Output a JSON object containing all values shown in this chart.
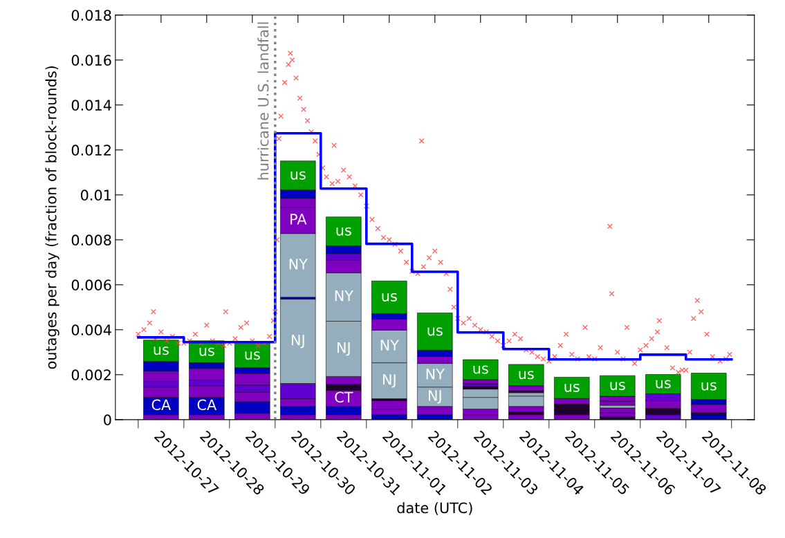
{
  "chart_data": {
    "type": "bar",
    "stacked": true,
    "xlabel": "date (UTC)",
    "ylabel": "outages per day (fraction of block-rounds)",
    "x": [
      "2012-10-27T12:00",
      "2012-10-28T12:00",
      "2012-10-29T12:00",
      "2012-10-30T12:00",
      "2012-10-31T12:00",
      "2012-11-01T12:00",
      "2012-11-02T12:00",
      "2012-11-03T12:00",
      "2012-11-04T12:00",
      "2012-11-05T12:00",
      "2012-11-06T12:00",
      "2012-11-07T12:00",
      "2012-11-08T12:00"
    ],
    "xlim": [
      "2012-10-26T12:00",
      "2012-11-09T12:00"
    ],
    "xticks": [
      {
        "value": "2012-10-27T12:00",
        "label": "2012-10-27"
      },
      {
        "value": "2012-10-28T12:00",
        "label": "2012-10-28"
      },
      {
        "value": "2012-10-29T12:00",
        "label": "2012-10-29"
      },
      {
        "value": "2012-10-30T12:00",
        "label": "2012-10-30"
      },
      {
        "value": "2012-10-31T12:00",
        "label": "2012-10-31"
      },
      {
        "value": "2012-11-01T12:00",
        "label": "2012-11-01"
      },
      {
        "value": "2012-11-02T12:00",
        "label": "2012-11-02"
      },
      {
        "value": "2012-11-03T12:00",
        "label": "2012-11-03"
      },
      {
        "value": "2012-11-04T12:00",
        "label": "2012-11-04"
      },
      {
        "value": "2012-11-05T12:00",
        "label": "2012-11-05"
      },
      {
        "value": "2012-11-06T12:00",
        "label": "2012-11-06"
      },
      {
        "value": "2012-11-07T12:00",
        "label": "2012-11-07"
      },
      {
        "value": "2012-11-08T12:00",
        "label": "2012-11-08"
      },
      {
        "value": "2012-10-27",
        "label": null
      },
      {
        "value": "2012-10-28",
        "label": null
      },
      {
        "value": "2012-10-29",
        "label": null
      },
      {
        "value": "2012-10-30",
        "label": null
      },
      {
        "value": "2012-10-31",
        "label": null
      },
      {
        "value": "2012-11-01",
        "label": null
      },
      {
        "value": "2012-11-02",
        "label": null
      },
      {
        "value": "2012-11-03",
        "label": null
      },
      {
        "value": "2012-11-04",
        "label": null
      },
      {
        "value": "2012-11-05",
        "label": null
      },
      {
        "value": "2012-11-06",
        "label": null
      },
      {
        "value": "2012-11-07",
        "label": null
      },
      {
        "value": "2012-11-08",
        "label": null
      },
      {
        "value": "2012-11-09",
        "label": null
      }
    ],
    "ylim": [
      0,
      0.018
    ],
    "yticks": [
      0,
      0.002,
      0.004,
      0.006,
      0.008,
      0.01,
      0.012,
      0.014,
      0.016,
      0.018
    ],
    "ref_lines": [
      {
        "axis": "x",
        "value": "2012-10-30T00:00",
        "label": "hurricane U.S. landfall",
        "color": "#808080",
        "line_style": "dotted"
      }
    ],
    "series": [
      {
        "values": [
          0.00022,
          0.00022,
          0.00028,
          0.00022,
          0.00022,
          0.00022,
          0.00022,
          0.00022,
          0.00022,
          0.00022,
          0.00012,
          0.00022,
          0.00022
        ],
        "colors": [
          "#8000c0",
          "#8000c0",
          "#8000c0",
          "#8000c0",
          "#8000c0",
          "#0000c0",
          "#0000c0",
          "#8000c0",
          "#8000c0",
          "#8000c0",
          "#200030",
          "#6000d0",
          "#0000c0"
        ]
      },
      {
        "values": [
          0.00077,
          0.00077,
          0.00052,
          0.00037,
          0.00037,
          0.00025,
          0.00037,
          0.00025,
          0.00012,
          0.00022,
          0.00018,
          0.00028,
          9e-05
        ],
        "colors": [
          "#0000c0",
          "#0000c0",
          "#0000c0",
          "#0000c0",
          "#0000c0",
          "#8000c0",
          "#8000c0",
          "#8000c0",
          "#200030",
          "#200030",
          "#8000c0",
          "#200030",
          "#200030"
        ],
        "value_labels": [
          "CA",
          "CA",
          null,
          null,
          null,
          null,
          null,
          null,
          null,
          null,
          null,
          null,
          null
        ]
      },
      {
        "values": [
          0.00046,
          0.00052,
          0.00043,
          0.00034,
          0.00071,
          0.00037,
          0.00086,
          0.00052,
          0.00025,
          0.00025,
          0.00022,
          0.00034,
          0.00037
        ],
        "colors": [
          "#8000c0",
          "#8000c0",
          "#8000c0",
          "#8000c0",
          "#8000c0",
          "#8000c0",
          "#94aebe",
          "#94aebe",
          "#8000c0",
          "#200030",
          "#8000c0",
          "#8000c0",
          "#8000c0"
        ],
        "value_labels": [
          null,
          null,
          null,
          null,
          "CT",
          null,
          "NJ",
          null,
          null,
          null,
          null,
          null,
          null
        ]
      },
      {
        "values": [
          0.00025,
          0.00025,
          0.00031,
          0.00068,
          0.00028,
          9e-05,
          0.00105,
          0.00037,
          0.00046,
          0.00025,
          0.00012,
          0.00031,
          0.00022
        ],
        "colors": [
          "#6000d0",
          "#6000d0",
          "#6000d0",
          "#6000d0",
          "#200030",
          "#200030",
          "#94aebe",
          "#94aebe",
          "#94aebe",
          "#8000c0",
          "#94aebe",
          "#6000d0",
          "#0000c0"
        ],
        "value_labels": [
          null,
          null,
          null,
          null,
          null,
          null,
          "NY",
          null,
          null,
          null,
          null,
          null,
          null
        ]
      },
      {
        "values": [
          0.00046,
          0.00052,
          0.00052,
          0.00375,
          0.00034,
          0.0016,
          0.00031,
          0.00012,
          0.00015,
          0.00095,
          0.00018,
          0.00086,
          0.00117
        ],
        "colors": [
          "#8000c0",
          "#8000c0",
          "#8000c0",
          "#94aebe",
          "#8000c0",
          "#94aebe",
          "#8000c0",
          "#200030",
          "#94aebe",
          "#00a000",
          "#8000c0",
          "#00a000",
          "#00a000"
        ],
        "value_labels": [
          null,
          null,
          null,
          "NJ",
          null,
          "NJ",
          null,
          null,
          null,
          "us",
          null,
          "us",
          "us"
        ]
      },
      {
        "values": [
          0.00043,
          0.00025,
          0.00025,
          9e-05,
          0.00246,
          0.00145,
          0.00028,
          0.00012,
          9e-05,
          null,
          0.00022,
          null,
          null
        ],
        "colors": [
          "#0000c0",
          "#0000c0",
          "#0000c0",
          "#0000c0",
          "#94aebe",
          "#94aebe",
          "#0000c0",
          "#6000d0",
          "#200030",
          null,
          "#8000c0",
          null,
          null
        ],
        "value_labels": [
          null,
          null,
          null,
          null,
          "NJ",
          "NY",
          null,
          null,
          null,
          null,
          null,
          null,
          null
        ]
      },
      {
        "values": [
          0.00095,
          0.00098,
          0.00108,
          0.00283,
          0.00215,
          0.00049,
          0.00166,
          0.00018,
          0.00022,
          null,
          0.00092,
          null,
          null
        ],
        "colors": [
          "#00a000",
          "#00a000",
          "#00a000",
          "#94aebe",
          "#94aebe",
          "#8000c0",
          "#00a000",
          "#8000c0",
          "#8000c0",
          null,
          "#00a000",
          null,
          null
        ],
        "value_labels": [
          "us",
          "us",
          "us",
          "NY",
          "NY",
          null,
          "us",
          null,
          null,
          null,
          "us",
          null,
          null
        ]
      },
      {
        "values": [
          null,
          null,
          null,
          0.00117,
          0.00058,
          0.00025,
          null,
          0.00089,
          0.00095,
          null,
          null,
          null,
          null
        ],
        "colors": [
          null,
          null,
          null,
          "#8000c0",
          "#8000c0",
          "#0000c0",
          null,
          "#00a000",
          "#00a000",
          null,
          null,
          null,
          null
        ],
        "value_labels": [
          null,
          null,
          null,
          "PA",
          null,
          null,
          null,
          "us",
          "us",
          null,
          null,
          null,
          null
        ]
      },
      {
        "values": [
          null,
          null,
          null,
          0.0004,
          0.00028,
          0.00145,
          null,
          null,
          null,
          null,
          null,
          null,
          null
        ],
        "colors": [
          null,
          null,
          null,
          "#8000c0",
          "#6000d0",
          "#00a000",
          null,
          null,
          null,
          null,
          null,
          null,
          null
        ],
        "value_labels": [
          null,
          null,
          null,
          null,
          null,
          "us",
          null,
          null,
          null,
          null,
          null,
          null,
          null
        ]
      },
      {
        "values": [
          null,
          null,
          null,
          0.00037,
          0.00034,
          null,
          null,
          null,
          null,
          null,
          null,
          null,
          null
        ],
        "colors": [
          null,
          null,
          null,
          "#0000c0",
          "#0000c0",
          null,
          null,
          null,
          null,
          null,
          null,
          null,
          null
        ]
      },
      {
        "values": [
          null,
          null,
          null,
          0.00129,
          0.00129,
          null,
          null,
          null,
          null,
          null,
          null,
          null,
          null
        ],
        "colors": [
          null,
          null,
          null,
          "#00a000",
          "#00a000",
          null,
          null,
          null,
          null,
          null,
          null,
          null,
          null
        ],
        "value_labels": [
          null,
          null,
          null,
          "us",
          "us",
          null,
          null,
          null,
          null,
          null,
          null,
          null,
          null
        ]
      },
      {
        "type": "step",
        "color": "#0000ff",
        "x": [
          "2012-10-27",
          "2012-10-28",
          "2012-10-29",
          "2012-10-30",
          "2012-10-31",
          "2012-11-01",
          "2012-11-02",
          "2012-11-03",
          "2012-11-04",
          "2012-11-05",
          "2012-11-06",
          "2012-11-07",
          "2012-11-08",
          "2012-11-09"
        ],
        "values": [
          0.00366,
          0.00345,
          0.00345,
          0.01274,
          0.01028,
          0.00782,
          0.00658,
          0.00388,
          0.00314,
          0.00268,
          0.00268,
          0.00289,
          0.00268,
          0.00268
        ]
      },
      {
        "type": "scatter",
        "color": "#ff4040",
        "marker": "cross",
        "x": [
          "2012-10-27T00:00",
          "2012-10-27T03:00",
          "2012-10-27T06:00",
          "2012-10-27T08:00",
          "2012-10-27T09:00",
          "2012-10-27T12:00",
          "2012-10-27T15:00",
          "2012-10-27T18:00",
          "2012-10-27T21:00",
          "2012-10-28T00:00",
          "2012-10-28T03:00",
          "2012-10-28T06:00",
          "2012-10-28T09:00",
          "2012-10-28T12:00",
          "2012-10-28T15:00",
          "2012-10-28T18:00",
          "2012-10-28T21:00",
          "2012-10-28T22:00",
          "2012-10-29T00:00",
          "2012-10-29T03:00",
          "2012-10-29T06:00",
          "2012-10-29T09:00",
          "2012-10-29T12:00",
          "2012-10-29T15:00",
          "2012-10-29T18:00",
          "2012-10-29T21:00",
          "2012-10-29T23:00",
          "2012-10-30T00:00",
          "2012-10-30T01:00",
          "2012-10-30T02:00",
          "2012-10-30T03:00",
          "2012-10-30T05:00",
          "2012-10-30T07:00",
          "2012-10-30T08:00",
          "2012-10-30T09:00",
          "2012-10-30T11:00",
          "2012-10-30T13:00",
          "2012-10-30T15:00",
          "2012-10-30T17:00",
          "2012-10-30T19:00",
          "2012-10-30T21:00",
          "2012-10-30T23:00",
          "2012-10-31T01:00",
          "2012-10-31T03:00",
          "2012-10-31T06:00",
          "2012-10-31T07:00",
          "2012-10-31T09:00",
          "2012-10-31T12:00",
          "2012-10-31T15:00",
          "2012-10-31T18:00",
          "2012-10-31T21:00",
          "2012-11-01T00:00",
          "2012-11-01T03:00",
          "2012-11-01T06:00",
          "2012-11-01T09:00",
          "2012-11-01T12:00",
          "2012-11-01T15:00",
          "2012-11-01T18:00",
          "2012-11-01T21:00",
          "2012-11-02T00:00",
          "2012-11-02T03:00",
          "2012-11-02T05:00",
          "2012-11-02T06:00",
          "2012-11-02T09:00",
          "2012-11-02T12:00",
          "2012-11-02T15:00",
          "2012-11-02T18:00",
          "2012-11-02T20:00",
          "2012-11-02T22:00",
          "2012-11-03T00:00",
          "2012-11-03T03:00",
          "2012-11-03T06:00",
          "2012-11-03T09:00",
          "2012-11-03T12:00",
          "2012-11-03T15:00",
          "2012-11-03T18:00",
          "2012-11-03T21:00",
          "2012-11-04T00:00",
          "2012-11-04T03:00",
          "2012-11-04T06:00",
          "2012-11-04T09:00",
          "2012-11-04T12:00",
          "2012-11-04T15:00",
          "2012-11-04T18:00",
          "2012-11-04T21:00",
          "2012-11-05T00:00",
          "2012-11-05T03:00",
          "2012-11-05T06:00",
          "2012-11-05T09:00",
          "2012-11-05T12:00",
          "2012-11-05T15:00",
          "2012-11-05T19:00",
          "2012-11-05T21:00",
          "2012-11-06T00:00",
          "2012-11-06T03:00",
          "2012-11-06T08:00",
          "2012-11-06T09:00",
          "2012-11-06T12:00",
          "2012-11-06T15:00",
          "2012-11-06T17:00",
          "2012-11-06T21:00",
          "2012-11-07T00:00",
          "2012-11-07T03:00",
          "2012-11-07T06:00",
          "2012-11-07T09:00",
          "2012-11-07T10:00",
          "2012-11-07T14:00",
          "2012-11-07T17:00",
          "2012-11-07T20:00",
          "2012-11-07T22:00",
          "2012-11-08T00:00",
          "2012-11-08T02:00",
          "2012-11-08T04:00",
          "2012-11-08T06:00",
          "2012-11-08T08:00",
          "2012-11-08T11:00",
          "2012-11-08T14:00",
          "2012-11-08T18:00",
          "2012-11-08T21:00",
          "2012-11-08T23:00"
        ],
        "values": [
          0.0038,
          0.004,
          0.0043,
          0.0048,
          0.0036,
          0.0039,
          0.0035,
          0.0037,
          0.0034,
          0.0034,
          0.0035,
          0.0038,
          0.0034,
          0.0042,
          0.0035,
          0.0034,
          0.0033,
          0.0048,
          0.0034,
          0.0036,
          0.0041,
          0.0043,
          0.0035,
          0.0033,
          0.0034,
          0.0037,
          0.0044,
          0.0048,
          0.008,
          0.0125,
          0.0135,
          0.015,
          0.0158,
          0.0163,
          0.016,
          0.0152,
          0.0143,
          0.0138,
          0.0133,
          0.0128,
          0.0124,
          0.0118,
          0.0112,
          0.0108,
          0.0105,
          0.0122,
          0.0106,
          0.0111,
          0.0108,
          0.0104,
          0.01,
          0.0095,
          0.0089,
          0.0085,
          0.0081,
          0.008,
          0.0078,
          0.0075,
          0.007,
          0.0066,
          0.0065,
          0.0124,
          0.0068,
          0.0072,
          0.0075,
          0.007,
          0.0065,
          0.0058,
          0.005,
          0.0045,
          0.0043,
          0.0045,
          0.0042,
          0.004,
          0.0039,
          0.0037,
          0.0035,
          0.0033,
          0.0035,
          0.0038,
          0.0036,
          0.0031,
          0.003,
          0.0028,
          0.0027,
          0.0026,
          0.0028,
          0.0033,
          0.0038,
          0.0029,
          0.0027,
          0.0041,
          0.0028,
          0.0027,
          0.0032,
          0.0086,
          0.0056,
          0.003,
          0.0027,
          0.0041,
          0.0025,
          0.0031,
          0.0033,
          0.0036,
          0.0039,
          0.0044,
          0.0032,
          0.0023,
          0.0021,
          0.0022,
          0.0022,
          0.003,
          0.0045,
          0.0053,
          0.0048,
          0.0038,
          0.0028,
          0.0026,
          0.0027,
          0.0029
        ]
      }
    ]
  }
}
